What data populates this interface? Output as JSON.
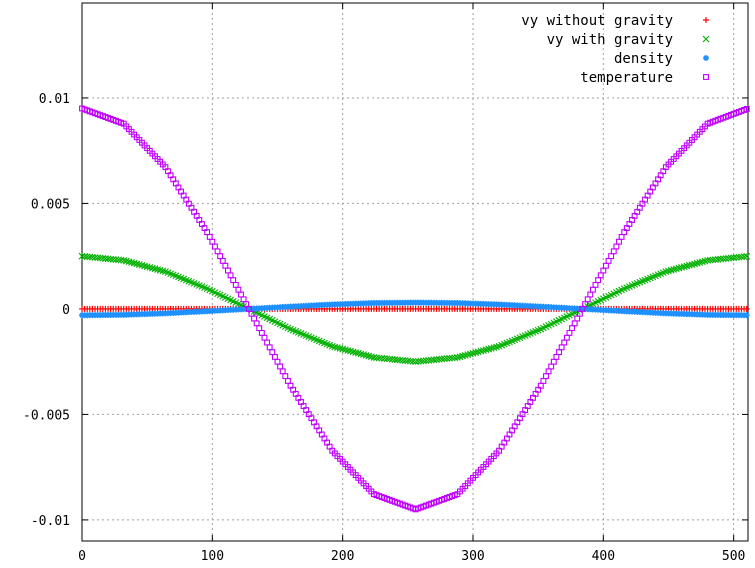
{
  "chart_data": {
    "type": "scatter",
    "title": "",
    "xlabel": "",
    "ylabel": "",
    "xlim": [
      0,
      511
    ],
    "ylim": [
      -0.011,
      0.0145
    ],
    "x_ticks": [
      0,
      100,
      200,
      300,
      400,
      500
    ],
    "x_tick_labels": [
      "0",
      "100",
      "200",
      "300",
      "400",
      "500"
    ],
    "y_ticks": [
      0.01,
      0.005,
      0,
      -0.005,
      -0.01
    ],
    "y_tick_labels": [
      "0.01",
      "0.005",
      "0",
      "-0.005",
      "-0.01"
    ],
    "grid": true,
    "legend_position": "top-right",
    "series": [
      {
        "name": "vy without gravity",
        "marker": "plus",
        "color": "#ff0000",
        "x": [
          0,
          32,
          64,
          96,
          128,
          160,
          192,
          224,
          256,
          288,
          320,
          352,
          384,
          416,
          448,
          480,
          511
        ],
        "y": [
          0,
          0,
          0,
          0,
          0,
          0,
          0,
          0,
          0,
          0,
          0,
          0,
          0,
          0,
          0,
          0,
          0
        ]
      },
      {
        "name": "vy with gravity",
        "marker": "cross",
        "color": "#00b000",
        "x": [
          0,
          32,
          64,
          96,
          128,
          160,
          192,
          224,
          256,
          288,
          320,
          352,
          384,
          416,
          448,
          480,
          511
        ],
        "y": [
          0.0025,
          0.0023,
          0.00177,
          0.00096,
          0.0,
          -0.00096,
          -0.00177,
          -0.0023,
          -0.0025,
          -0.0023,
          -0.00177,
          -0.00096,
          0.0,
          0.00096,
          0.00177,
          0.0023,
          0.0025
        ]
      },
      {
        "name": "density",
        "marker": "star",
        "color": "#1e90ff",
        "x": [
          0,
          32,
          64,
          96,
          128,
          160,
          192,
          224,
          256,
          288,
          320,
          352,
          384,
          416,
          448,
          480,
          511
        ],
        "y": [
          -0.0003,
          -0.00028,
          -0.00021,
          -0.00011,
          0.0,
          0.00011,
          0.00021,
          0.00028,
          0.0003,
          0.00028,
          0.00021,
          0.00011,
          0.0,
          -0.00011,
          -0.00021,
          -0.00028,
          -0.0003
        ]
      },
      {
        "name": "temperature",
        "marker": "square",
        "color": "#c000ff",
        "x": [
          0,
          32,
          64,
          96,
          128,
          160,
          192,
          224,
          256,
          288,
          320,
          352,
          384,
          416,
          448,
          480,
          511
        ],
        "y": [
          0.0095,
          0.00878,
          0.00672,
          0.00364,
          0.0,
          -0.00364,
          -0.00672,
          -0.00878,
          -0.0095,
          -0.00878,
          -0.00672,
          -0.00364,
          0.0,
          0.00364,
          0.00672,
          0.00878,
          0.0095
        ]
      }
    ]
  }
}
